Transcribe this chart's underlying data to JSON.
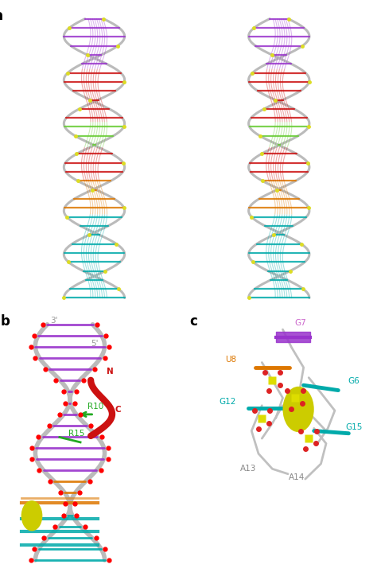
{
  "fig_width": 4.74,
  "fig_height": 7.24,
  "dpi": 100,
  "bg_color": "#ffffff",
  "colors": {
    "gray": "#aaaaaa",
    "light_gray": "#cccccc",
    "dark_gray": "#888888",
    "purple": "#9933cc",
    "red": "#cc1111",
    "green_yellow": "#aacc00",
    "green": "#22aa22",
    "orange": "#dd7700",
    "teal": "#00aaaa",
    "yellow_green": "#ccdd00",
    "yellow": "#dddd00",
    "red_dark": "#aa0000",
    "sphere_yellow": "#cccc00",
    "white": "#ffffff",
    "black": "#000000"
  },
  "panel_a_label": "a",
  "panel_b_label": "b",
  "panel_c_label": "c",
  "panel_b_annotations": {
    "3prime": {
      "text": "3'",
      "color": "#999999"
    },
    "5prime": {
      "text": "5'",
      "color": "#999999"
    },
    "N": {
      "text": "N",
      "color": "#cc1111"
    },
    "C": {
      "text": "C",
      "color": "#cc1111"
    },
    "R10": {
      "text": "R10",
      "color": "#22aa22"
    },
    "R15": {
      "text": "R15",
      "color": "#22aa22"
    }
  },
  "panel_c_annotations": {
    "G7": {
      "text": "G7",
      "color": "#cc66cc"
    },
    "U8": {
      "text": "U8",
      "color": "#dd7700"
    },
    "G6": {
      "text": "G6",
      "color": "#00aaaa"
    },
    "G12": {
      "text": "G12",
      "color": "#00aaaa"
    },
    "G15": {
      "text": "G15",
      "color": "#00aaaa"
    },
    "A13": {
      "text": "A13",
      "color": "#888888"
    },
    "A14": {
      "text": "A14",
      "color": "#888888"
    }
  }
}
